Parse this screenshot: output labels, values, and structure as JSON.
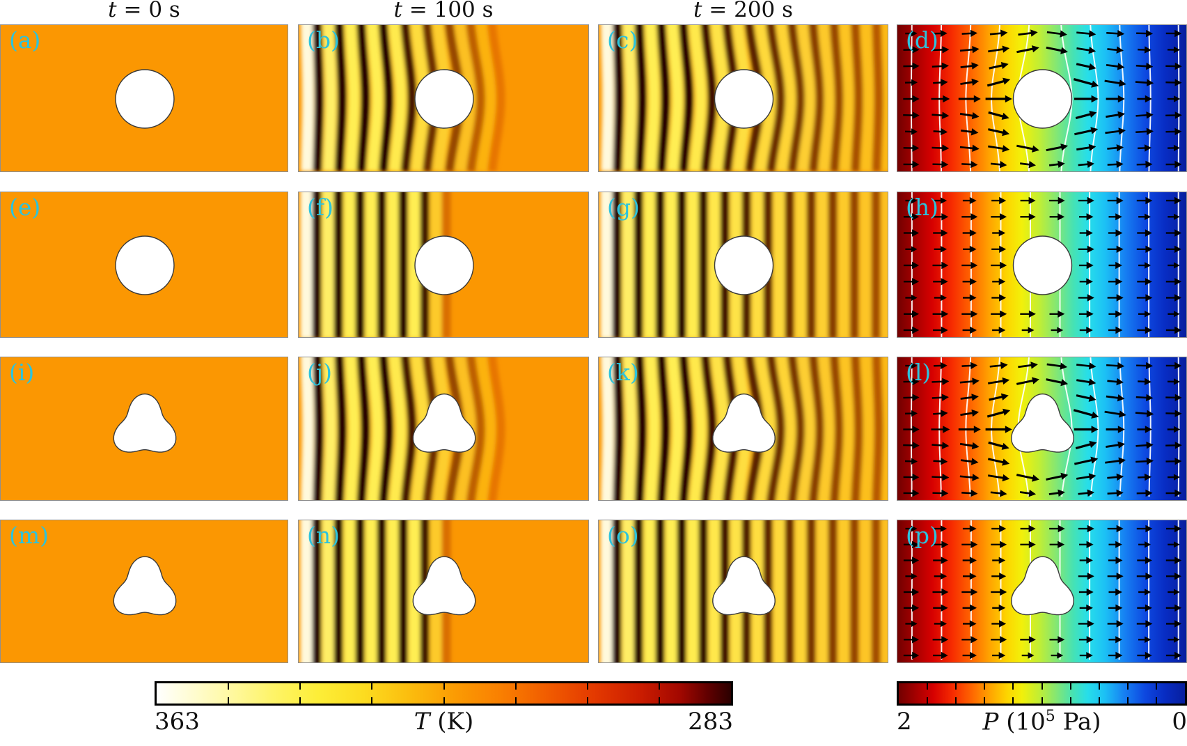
{
  "figure": {
    "time_headers": [
      {
        "var": "t",
        "rest": " = 0 s"
      },
      {
        "var": "t",
        "rest": " = 100 s"
      },
      {
        "var": "t",
        "rest": " = 200 s"
      }
    ]
  },
  "chart_data": {
    "type": "heatmap",
    "layout": "4x4 grid of simulation field panels",
    "columns": [
      "t = 0 s",
      "t = 100 s",
      "t = 200 s",
      "pressure + velocity field"
    ],
    "panel_label_color": "#2cc3dd",
    "base_temperature_color": "#fb9702",
    "panels": [
      {
        "label": "(a)",
        "row": 1,
        "col": 1,
        "field": "temperature",
        "time_s": 0,
        "obstacle": "circle",
        "pattern": "uniform"
      },
      {
        "label": "(b)",
        "row": 1,
        "col": 2,
        "field": "temperature",
        "time_s": 100,
        "obstacle": "circle",
        "pattern": "stripes-bent"
      },
      {
        "label": "(c)",
        "row": 1,
        "col": 3,
        "field": "temperature",
        "time_s": 200,
        "obstacle": "circle",
        "pattern": "stripes-bent-full"
      },
      {
        "label": "(d)",
        "row": 1,
        "col": 4,
        "field": "pressure",
        "time_s": null,
        "obstacle": "circle",
        "pattern": "contours-bent"
      },
      {
        "label": "(e)",
        "row": 2,
        "col": 1,
        "field": "temperature",
        "time_s": 0,
        "obstacle": "circle",
        "pattern": "uniform"
      },
      {
        "label": "(f)",
        "row": 2,
        "col": 2,
        "field": "temperature",
        "time_s": 100,
        "obstacle": "circle",
        "pattern": "stripes-straight"
      },
      {
        "label": "(g)",
        "row": 2,
        "col": 3,
        "field": "temperature",
        "time_s": 200,
        "obstacle": "circle",
        "pattern": "stripes-straight-full"
      },
      {
        "label": "(h)",
        "row": 2,
        "col": 4,
        "field": "pressure",
        "time_s": null,
        "obstacle": "circle",
        "pattern": "contours-straight"
      },
      {
        "label": "(i)",
        "row": 3,
        "col": 1,
        "field": "temperature",
        "time_s": 0,
        "obstacle": "blob",
        "pattern": "uniform"
      },
      {
        "label": "(j)",
        "row": 3,
        "col": 2,
        "field": "temperature",
        "time_s": 100,
        "obstacle": "blob",
        "pattern": "stripes-bent"
      },
      {
        "label": "(k)",
        "row": 3,
        "col": 3,
        "field": "temperature",
        "time_s": 200,
        "obstacle": "blob",
        "pattern": "stripes-bent-full"
      },
      {
        "label": "(l)",
        "row": 3,
        "col": 4,
        "field": "pressure",
        "time_s": null,
        "obstacle": "blob",
        "pattern": "contours-bent"
      },
      {
        "label": "(m)",
        "row": 4,
        "col": 1,
        "field": "temperature",
        "time_s": 0,
        "obstacle": "blob",
        "pattern": "uniform"
      },
      {
        "label": "(n)",
        "row": 4,
        "col": 2,
        "field": "temperature",
        "time_s": 100,
        "obstacle": "blob",
        "pattern": "stripes-straight"
      },
      {
        "label": "(o)",
        "row": 4,
        "col": 3,
        "field": "temperature",
        "time_s": 200,
        "obstacle": "blob",
        "pattern": "stripes-straight-full"
      },
      {
        "label": "(p)",
        "row": 4,
        "col": 4,
        "field": "pressure",
        "time_s": null,
        "obstacle": "blob",
        "pattern": "contours-straight"
      }
    ],
    "colorbars": [
      {
        "name": "temperature",
        "title_var": "T",
        "title_rest": " (K)",
        "left_label": "363",
        "right_label": "283",
        "min": 283,
        "max": 363,
        "units": "K",
        "colormap": "hot: white-yellow-orange-red-black",
        "segments": 8
      },
      {
        "name": "pressure",
        "title_var": "P",
        "title_pre": " (10",
        "title_sup": "5",
        "title_post": " Pa)",
        "left_label": "2",
        "right_label": "0",
        "min": 0,
        "max": 2,
        "units": "10^5 Pa",
        "colormap": "jet: dark-red-red-yellow-green-cyan-blue-dark-blue",
        "segments": 10
      }
    ]
  }
}
